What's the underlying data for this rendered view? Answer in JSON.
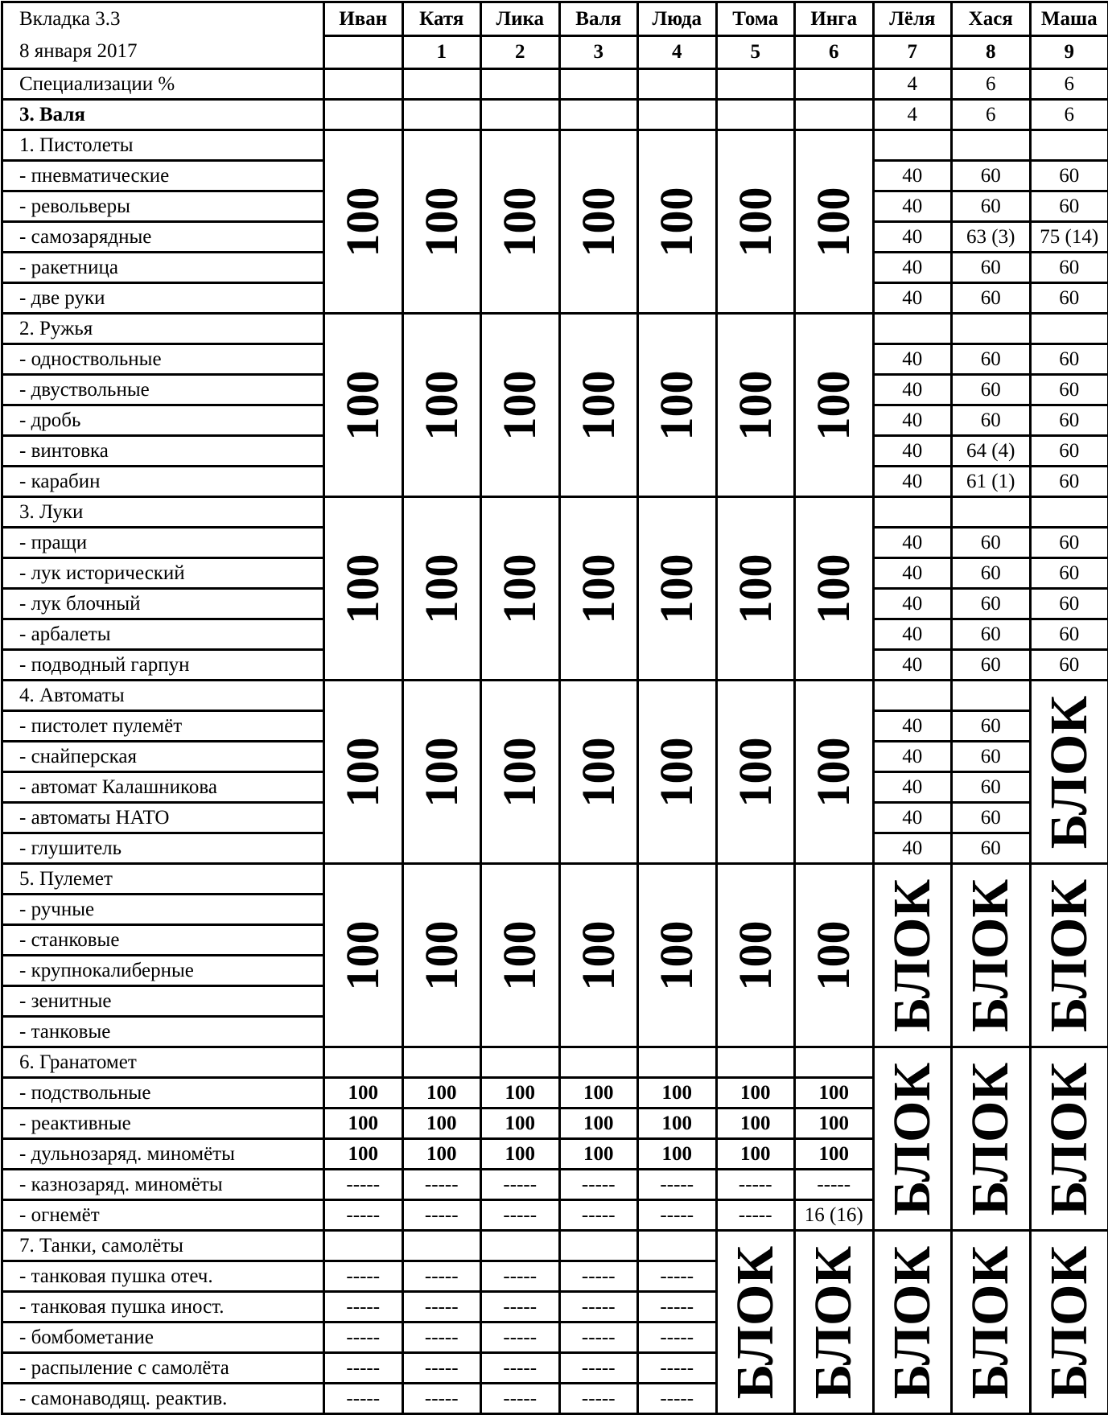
{
  "header": {
    "title": "Вкладка 3.3",
    "date": "8 января 2017"
  },
  "columns": [
    {
      "name": "Иван",
      "num": ""
    },
    {
      "name": "Катя",
      "num": "1"
    },
    {
      "name": "Лика",
      "num": "2"
    },
    {
      "name": "Валя",
      "num": "3"
    },
    {
      "name": "Люда",
      "num": "4"
    },
    {
      "name": "Тома",
      "num": "5"
    },
    {
      "name": "Инга",
      "num": "6"
    },
    {
      "name": "Лёля",
      "num": "7"
    },
    {
      "name": "Хася",
      "num": "8"
    },
    {
      "name": "Маша",
      "num": "9"
    }
  ],
  "spec_row": {
    "label": "Специализации %",
    "values": [
      "",
      "",
      "",
      "",
      "",
      "",
      "",
      "4",
      "6",
      "6"
    ]
  },
  "person_row": {
    "label": "3. Валя",
    "values": [
      "",
      "",
      "",
      "",
      "",
      "",
      "",
      "4",
      "6",
      "6"
    ]
  },
  "sections": [
    {
      "title": "1. Пистолеты",
      "items": [
        "- пневматические",
        "- револьверы",
        "- самозарядные",
        "- ракетница",
        "- две руки"
      ],
      "columns": [
        {
          "merged": "100"
        },
        {
          "merged": "100"
        },
        {
          "merged": "100"
        },
        {
          "merged": "100"
        },
        {
          "merged": "100"
        },
        {
          "merged": "100"
        },
        {
          "merged": "100"
        },
        {
          "values": [
            "",
            "40",
            "40",
            "40",
            "40",
            "40"
          ]
        },
        {
          "values": [
            "",
            "60",
            "60",
            "63 (3)",
            "60",
            "60"
          ]
        },
        {
          "values": [
            "",
            "60",
            "60",
            "75 (14)",
            "60",
            "60"
          ]
        }
      ]
    },
    {
      "title": "2. Ружья",
      "items": [
        "- одноствольные",
        "- двуствольные",
        "- дробь",
        "- винтовка",
        "- карабин"
      ],
      "columns": [
        {
          "merged": "100"
        },
        {
          "merged": "100"
        },
        {
          "merged": "100"
        },
        {
          "merged": "100"
        },
        {
          "merged": "100"
        },
        {
          "merged": "100"
        },
        {
          "merged": "100"
        },
        {
          "values": [
            "",
            "40",
            "40",
            "40",
            "40",
            "40"
          ]
        },
        {
          "values": [
            "",
            "60",
            "60",
            "60",
            "64 (4)",
            "61 (1)"
          ]
        },
        {
          "values": [
            "",
            "60",
            "60",
            "60",
            "60",
            "60"
          ]
        }
      ]
    },
    {
      "title": "3. Луки",
      "items": [
        "- пращи",
        "- лук исторический",
        "- лук блочный",
        "- арбалеты",
        "- подводный гарпун"
      ],
      "columns": [
        {
          "merged": "100"
        },
        {
          "merged": "100"
        },
        {
          "merged": "100"
        },
        {
          "merged": "100"
        },
        {
          "merged": "100"
        },
        {
          "merged": "100"
        },
        {
          "merged": "100"
        },
        {
          "values": [
            "",
            "40",
            "40",
            "40",
            "40",
            "40"
          ]
        },
        {
          "values": [
            "",
            "60",
            "60",
            "60",
            "60",
            "60"
          ]
        },
        {
          "values": [
            "",
            "60",
            "60",
            "60",
            "60",
            "60"
          ]
        }
      ]
    },
    {
      "title": "4. Автоматы",
      "items": [
        "- пистолет пулемёт",
        "- снайперская",
        "- автомат Калашникова",
        "- автоматы НАТО",
        "- глушитель"
      ],
      "columns": [
        {
          "merged": "100"
        },
        {
          "merged": "100"
        },
        {
          "merged": "100"
        },
        {
          "merged": "100"
        },
        {
          "merged": "100"
        },
        {
          "merged": "100"
        },
        {
          "merged": "100"
        },
        {
          "values": [
            "",
            "40",
            "40",
            "40",
            "40",
            "40"
          ]
        },
        {
          "values": [
            "",
            "60",
            "60",
            "60",
            "60",
            "60"
          ]
        },
        {
          "merged": "БЛОК"
        }
      ]
    },
    {
      "title": "5. Пулемет",
      "items": [
        "- ручные",
        "- станковые",
        "- крупнокалиберные",
        "- зенитные",
        "- танковые"
      ],
      "columns": [
        {
          "merged": "100"
        },
        {
          "merged": "100"
        },
        {
          "merged": "100"
        },
        {
          "merged": "100"
        },
        {
          "merged": "100"
        },
        {
          "merged": "100"
        },
        {
          "merged": "100"
        },
        {
          "merged": "БЛОК"
        },
        {
          "merged": "БЛОК"
        },
        {
          "merged": "БЛОК"
        }
      ]
    },
    {
      "title": "6. Гранатомет",
      "items": [
        "- подствольные",
        "- реактивные",
        "- дульнозаряд. миномёты",
        "- казнозаряд. миномёты",
        "- огнемёт"
      ],
      "columns": [
        {
          "values": [
            "",
            "100",
            "100",
            "100",
            "-----",
            "-----"
          ]
        },
        {
          "values": [
            "",
            "100",
            "100",
            "100",
            "-----",
            "-----"
          ]
        },
        {
          "values": [
            "",
            "100",
            "100",
            "100",
            "-----",
            "-----"
          ]
        },
        {
          "values": [
            "",
            "100",
            "100",
            "100",
            "-----",
            "-----"
          ]
        },
        {
          "values": [
            "",
            "100",
            "100",
            "100",
            "-----",
            "-----"
          ]
        },
        {
          "values": [
            "",
            "100",
            "100",
            "100",
            "-----",
            "-----"
          ]
        },
        {
          "values": [
            "",
            "100",
            "100",
            "100",
            "-----",
            "16 (16)"
          ]
        },
        {
          "merged": "БЛОК"
        },
        {
          "merged": "БЛОК"
        },
        {
          "merged": "БЛОК"
        }
      ]
    },
    {
      "title": "7. Танки, самолёты",
      "items": [
        "- танковая пушка отеч.",
        "- танковая пушка иност.",
        "- бомбометание",
        "- распыление с самолёта",
        "- самонаводящ. реактив."
      ],
      "columns": [
        {
          "values": [
            "",
            "-----",
            "-----",
            "-----",
            "-----",
            "-----"
          ]
        },
        {
          "values": [
            "",
            "-----",
            "-----",
            "-----",
            "-----",
            "-----"
          ]
        },
        {
          "values": [
            "",
            "-----",
            "-----",
            "-----",
            "-----",
            "-----"
          ]
        },
        {
          "values": [
            "",
            "-----",
            "-----",
            "-----",
            "-----",
            "-----"
          ]
        },
        {
          "values": [
            "",
            "-----",
            "-----",
            "-----",
            "-----",
            "-----"
          ]
        },
        {
          "merged": "БЛОК"
        },
        {
          "merged": "БЛОК"
        },
        {
          "merged": "БЛОК"
        },
        {
          "merged": "БЛОК"
        },
        {
          "merged": "БЛОК"
        }
      ]
    }
  ]
}
